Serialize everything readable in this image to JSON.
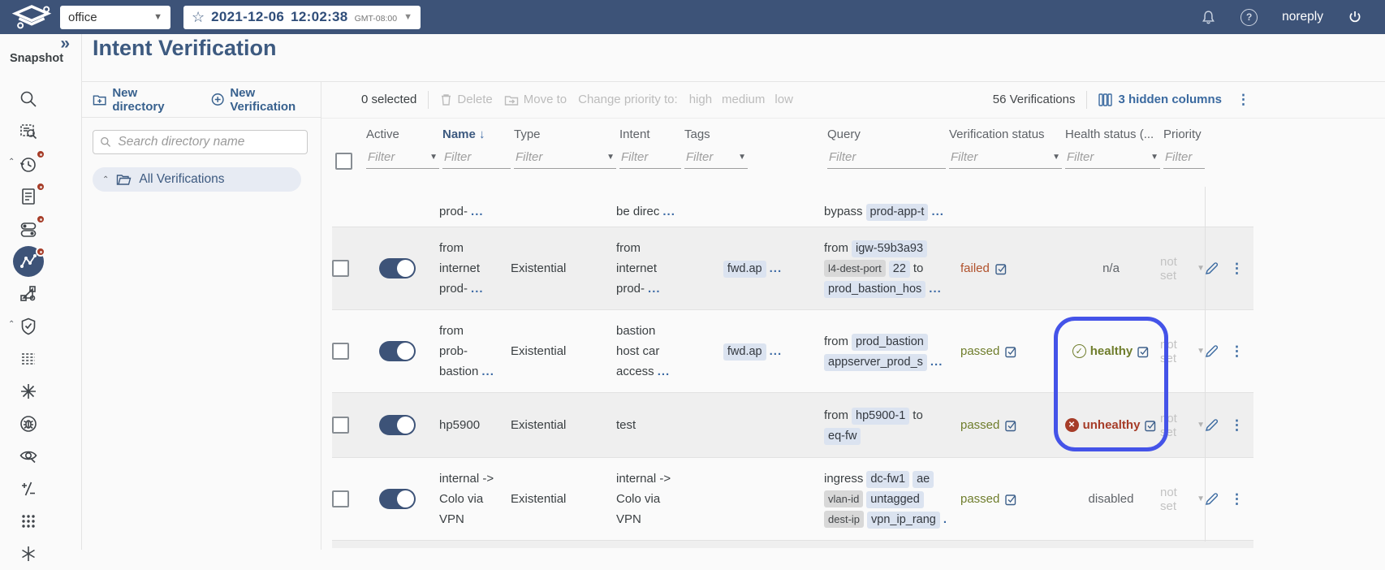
{
  "topbar": {
    "network": "office",
    "snapshot_date": "2021-12-06",
    "snapshot_time": "12:02:38",
    "snapshot_timezone": "GMT-08:00",
    "username": "noreply"
  },
  "sidebar": {
    "section_label": "Snapshot",
    "icons": [
      {
        "name": "search"
      },
      {
        "name": "snapshot-search"
      },
      {
        "name": "history",
        "badge": true,
        "group": true
      },
      {
        "name": "report",
        "badge": true
      },
      {
        "name": "toggles",
        "badge": true
      },
      {
        "name": "network-paths",
        "badge": true,
        "active": true
      },
      {
        "name": "topology"
      },
      {
        "name": "verification-shield",
        "group": true
      },
      {
        "name": "matrix"
      },
      {
        "name": "spread"
      },
      {
        "name": "bug"
      },
      {
        "name": "inspect"
      },
      {
        "name": "diff"
      },
      {
        "name": "apps"
      },
      {
        "name": "sparkle"
      }
    ]
  },
  "panel": {
    "title": "Intent Verification",
    "new_directory": "New directory",
    "new_verification": "New Verification",
    "search_placeholder": "Search directory name",
    "root_item": "All Verifications"
  },
  "actionbar": {
    "selected": "0 selected",
    "delete": "Delete",
    "move_to": "Move to",
    "change_priority": "Change priority to:",
    "priority_options": [
      "high",
      "medium",
      "low"
    ],
    "count": "56 Verifications",
    "hidden_columns": "3 hidden columns"
  },
  "table": {
    "headers": {
      "active": "Active",
      "name": "Name",
      "type": "Type",
      "intent": "Intent",
      "tags": "Tags",
      "query": "Query",
      "verification_status": "Verification status",
      "health_status": "Health status (...",
      "priority": "Priority"
    },
    "filter_placeholder": "Filter",
    "rows": [
      {
        "partial": "top",
        "shade": false,
        "name": [
          [
            {
              "s": "t",
              "t": "prod-"
            },
            {
              "s": "m",
              "t": "..."
            }
          ]
        ],
        "intent": [
          [
            {
              "s": "t",
              "t": "be direc"
            },
            {
              "s": "m",
              "t": "..."
            }
          ]
        ],
        "query": [
          [
            {
              "s": "t",
              "t": "bypass"
            },
            {
              "s": "c",
              "t": "prod-app-t"
            },
            {
              "s": "m",
              "t": "..."
            }
          ]
        ]
      },
      {
        "shade": true,
        "active": true,
        "type": "Existential",
        "name": [
          [
            {
              "s": "t",
              "t": "from"
            }
          ],
          [
            {
              "s": "t",
              "t": "internet"
            }
          ],
          [
            {
              "s": "t",
              "t": "prod-"
            },
            {
              "s": "m",
              "t": "..."
            }
          ]
        ],
        "intent": [
          [
            {
              "s": "t",
              "t": "from"
            }
          ],
          [
            {
              "s": "t",
              "t": "internet"
            }
          ],
          [
            {
              "s": "t",
              "t": "prod-"
            },
            {
              "s": "m",
              "t": "..."
            }
          ]
        ],
        "tags": [
          [
            {
              "s": "c",
              "t": "fwd.ap"
            },
            {
              "s": "m",
              "t": "..."
            }
          ]
        ],
        "query": [
          [
            {
              "s": "t",
              "t": "from"
            },
            {
              "s": "c",
              "t": "igw-59b3a93"
            }
          ],
          [
            {
              "s": "g",
              "t": "l4-dest-port"
            },
            {
              "s": "c",
              "t": "22"
            },
            {
              "s": "t",
              "t": "to"
            }
          ],
          [
            {
              "s": "c",
              "t": "prod_bastion_hos"
            },
            {
              "s": "m",
              "t": "..."
            }
          ]
        ],
        "status": {
          "label": "failed",
          "tone": "failed"
        },
        "health": {
          "kind": "na",
          "label": "n/a"
        },
        "priority": "not set"
      },
      {
        "shade": false,
        "active": true,
        "type": "Existential",
        "name": [
          [
            {
              "s": "t",
              "t": "from"
            }
          ],
          [
            {
              "s": "t",
              "t": "prob-"
            }
          ],
          [
            {
              "s": "t",
              "t": "bastion"
            },
            {
              "s": "m",
              "t": "..."
            }
          ]
        ],
        "intent": [
          [
            {
              "s": "t",
              "t": "bastion"
            }
          ],
          [
            {
              "s": "t",
              "t": "host car"
            }
          ],
          [
            {
              "s": "t",
              "t": "access"
            },
            {
              "s": "m",
              "t": "..."
            }
          ]
        ],
        "tags": [
          [
            {
              "s": "c",
              "t": "fwd.ap"
            },
            {
              "s": "m",
              "t": "..."
            }
          ]
        ],
        "query": [
          [
            {
              "s": "t",
              "t": "from"
            },
            {
              "s": "c",
              "t": "prod_bastion"
            }
          ],
          [
            {
              "s": "c",
              "t": "appserver_prod_s"
            },
            {
              "s": "m",
              "t": "..."
            }
          ]
        ],
        "status": {
          "label": "passed",
          "tone": "passed"
        },
        "health": {
          "kind": "ok",
          "label": "healthy"
        },
        "priority": "not set"
      },
      {
        "shade": true,
        "active": true,
        "type": "Existential",
        "name": [
          [
            {
              "s": "t",
              "t": "hp5900"
            }
          ]
        ],
        "intent": [
          [
            {
              "s": "t",
              "t": "test"
            }
          ]
        ],
        "tags": [],
        "query": [
          [
            {
              "s": "t",
              "t": "from"
            },
            {
              "s": "c",
              "t": "hp5900-1"
            },
            {
              "s": "t",
              "t": "to"
            }
          ],
          [
            {
              "s": "c",
              "t": "eq-fw"
            }
          ]
        ],
        "status": {
          "label": "passed",
          "tone": "passed"
        },
        "health": {
          "kind": "bad",
          "label": "unhealthy"
        },
        "priority": "not set"
      },
      {
        "shade": false,
        "active": true,
        "type": "Existential",
        "name": [
          [
            {
              "s": "t",
              "t": "internal ->"
            }
          ],
          [
            {
              "s": "t",
              "t": "Colo via"
            }
          ],
          [
            {
              "s": "t",
              "t": "VPN"
            }
          ]
        ],
        "intent": [
          [
            {
              "s": "t",
              "t": "internal ->"
            }
          ],
          [
            {
              "s": "t",
              "t": "Colo via"
            }
          ],
          [
            {
              "s": "t",
              "t": "VPN"
            }
          ]
        ],
        "tags": [],
        "query": [
          [
            {
              "s": "t",
              "t": "ingress"
            },
            {
              "s": "c",
              "t": "dc-fw1"
            },
            {
              "s": "c",
              "t": "ae"
            }
          ],
          [
            {
              "s": "g",
              "t": "vlan-id"
            },
            {
              "s": "c",
              "t": "untagged"
            }
          ],
          [
            {
              "s": "g",
              "t": "dest-ip"
            },
            {
              "s": "c",
              "t": "vpn_ip_rang"
            },
            {
              "s": "m",
              "t": "..."
            }
          ]
        ],
        "status": {
          "label": "passed",
          "tone": "passed"
        },
        "health": {
          "kind": "plain",
          "label": "disabled"
        },
        "priority": "not set"
      },
      {
        "partial": "bottom",
        "shade": true
      }
    ]
  },
  "colors": {
    "topbar": "#3d5378",
    "accent": "#3d5a80",
    "link": "#38618e",
    "failed": "#b0512b",
    "passed": "#6f7d2c",
    "unhealthy": "#a63c28",
    "highlight_ring": "#4453e8",
    "chip_bg": "#dbe3f0",
    "chip_gray_bg": "#d8d8d8"
  }
}
